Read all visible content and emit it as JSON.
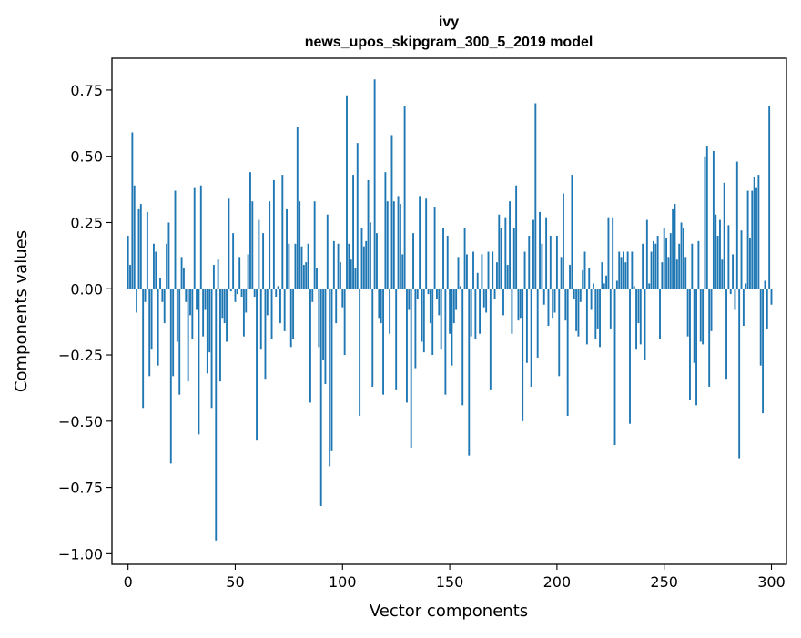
{
  "chart_data": {
    "type": "bar",
    "title": "ivy",
    "subtitle": "news_upos_skipgram_300_5_2019 model",
    "xlabel": "Vector components",
    "ylabel": "Components values",
    "xlim": [
      -7.5,
      307
    ],
    "ylim": [
      -1.04,
      0.87
    ],
    "xticks": [
      0,
      50,
      100,
      150,
      200,
      250,
      300
    ],
    "xtick_labels": [
      "0",
      "50",
      "100",
      "150",
      "200",
      "250",
      "300"
    ],
    "yticks": [
      0.75,
      0.5,
      0.25,
      0.0,
      -0.25,
      -0.5,
      -0.75,
      -1.0
    ],
    "ytick_labels": [
      "0.75",
      "0.50",
      "0.25",
      "0.00",
      "−0.25",
      "−0.50",
      "−0.75",
      "−1.00"
    ],
    "bar_color": "#1f77b4",
    "grid": false,
    "values": [
      0.2,
      0.09,
      0.59,
      0.39,
      -0.09,
      0.3,
      0.32,
      -0.45,
      -0.05,
      0.29,
      -0.33,
      -0.23,
      0.17,
      0.14,
      -0.29,
      0.04,
      -0.05,
      -0.13,
      0.17,
      0.25,
      -0.66,
      -0.33,
      0.37,
      -0.2,
      -0.4,
      0.12,
      0.08,
      -0.05,
      -0.35,
      -0.1,
      -0.19,
      0.38,
      -0.08,
      -0.55,
      0.39,
      -0.18,
      -0.08,
      -0.32,
      -0.24,
      -0.45,
      0.09,
      -0.95,
      0.11,
      -0.35,
      -0.11,
      -0.13,
      -0.2,
      0.34,
      -0.01,
      0.21,
      -0.05,
      -0.02,
      0.12,
      -0.03,
      -0.18,
      -0.09,
      0.13,
      0.44,
      0.33,
      -0.03,
      -0.57,
      0.26,
      -0.23,
      0.21,
      -0.34,
      -0.1,
      0.33,
      -0.19,
      0.41,
      -0.03,
      0.01,
      -0.13,
      0.43,
      -0.16,
      0.3,
      0.17,
      -0.22,
      -0.19,
      0.17,
      0.61,
      0.33,
      0.16,
      0.09,
      0.1,
      0.17,
      -0.43,
      -0.05,
      0.33,
      0.08,
      -0.22,
      -0.82,
      -0.27,
      -0.36,
      0.28,
      -0.67,
      -0.61,
      0.18,
      -0.13,
      0.17,
      0.1,
      -0.07,
      -0.25,
      0.73,
      0.17,
      0.11,
      0.43,
      0.08,
      0.55,
      -0.48,
      0.23,
      0.16,
      0.18,
      0.41,
      0.25,
      -0.37,
      0.79,
      0.21,
      -0.11,
      -0.13,
      -0.4,
      0.44,
      0.33,
      -0.17,
      0.58,
      0.33,
      -0.38,
      0.35,
      0.32,
      0.13,
      0.69,
      -0.43,
      -0.08,
      -0.6,
      0.21,
      -0.3,
      -0.04,
      0.35,
      -0.2,
      -0.24,
      0.34,
      -0.02,
      -0.13,
      -0.25,
      0.31,
      -0.04,
      -0.1,
      -0.23,
      0.23,
      -0.4,
      0.2,
      -0.17,
      -0.29,
      -0.13,
      -0.08,
      0.12,
      0.01,
      -0.44,
      0.23,
      0.13,
      -0.63,
      -0.18,
      0.14,
      -0.19,
      0.06,
      -0.17,
      0.13,
      -0.07,
      -0.09,
      0.14,
      -0.38,
      0.14,
      -0.04,
      0.1,
      0.28,
      0.23,
      -0.1,
      0.27,
      0.09,
      0.33,
      -0.17,
      0.23,
      0.39,
      -0.12,
      -0.11,
      -0.5,
      0.14,
      -0.28,
      0.2,
      -0.37,
      0.26,
      0.7,
      -0.26,
      0.29,
      0.17,
      -0.06,
      0.27,
      -0.14,
      0.2,
      -0.11,
      -0.09,
      0.2,
      -0.33,
      0.12,
      0.36,
      -0.12,
      -0.48,
      0.09,
      0.43,
      -0.04,
      -0.16,
      -0.18,
      -0.05,
      0.07,
      0.14,
      -0.21,
      0.08,
      -0.08,
      0.02,
      -0.19,
      -0.15,
      -0.22,
      0.1,
      0.02,
      0.05,
      0.27,
      -0.15,
      0.27,
      -0.59,
      0.03,
      0.14,
      0.12,
      0.14,
      0.1,
      0.14,
      -0.51,
      0.14,
      0.01,
      -0.23,
      -0.13,
      -0.21,
      0.17,
      -0.27,
      0.26,
      0.02,
      0.14,
      0.18,
      0.17,
      0.2,
      -0.19,
      0.1,
      0.23,
      0.19,
      0.12,
      0.21,
      0.3,
      0.32,
      0.11,
      0.17,
      0.25,
      0.23,
      0.12,
      -0.18,
      -0.42,
      0.17,
      -0.28,
      -0.44,
      0.18,
      -0.2,
      -0.21,
      0.5,
      0.54,
      -0.37,
      -0.16,
      0.52,
      0.28,
      0.2,
      0.26,
      0.11,
      0.4,
      -0.34,
      0.24,
      -0.02,
      0.13,
      -0.08,
      0.48,
      -0.64,
      0.22,
      -0.14,
      0.02,
      0.37,
      0.19,
      0.37,
      0.42,
      0.38,
      0.43,
      -0.29,
      -0.47,
      0.03,
      -0.15,
      0.69,
      -0.06
    ]
  }
}
